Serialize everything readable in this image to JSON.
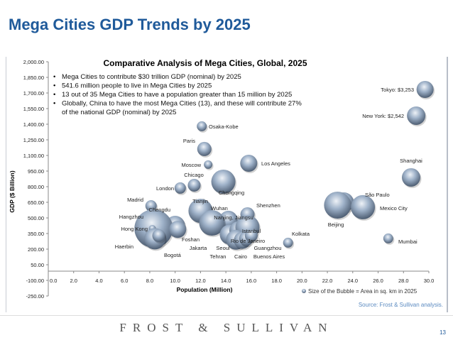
{
  "slide": {
    "title": "Mega Cities GDP Trends by 2025",
    "source": "Source: Frost & Sullivan analysis.",
    "footer": "FROST & SULLIVAN",
    "page": "13"
  },
  "chart_data": {
    "type": "bubble",
    "title": "Comparative Analysis  of Mega Cities, Global, 2025",
    "xlabel": "Population (Million)",
    "ylabel": "GDP ($ Billion)",
    "xlim": [
      0,
      30
    ],
    "ylim": [
      -250,
      2000
    ],
    "x_ticks": [
      "0.0",
      "2.0",
      "4.0",
      "6.0",
      "8.0",
      "10.0",
      "12.0",
      "14.0",
      "16.0",
      "18.0",
      "20.0",
      "22.0",
      "24.0",
      "26.0",
      "28.0",
      "30.0"
    ],
    "y_ticks": [
      "2,000.00",
      "1,850.00",
      "1,700.00",
      "1,550.00",
      "1,400.00",
      "1,250.00",
      "1,100.00",
      "950.00",
      "800.00",
      "650.00",
      "500.00",
      "350.00",
      "200.00",
      "50.00",
      "-100.00",
      "-250.00"
    ],
    "legend": "Size of the Bubble = Area in sq. km in 2025",
    "bubble_color": "#8fa3bd",
    "notes": [
      "Mega Cities to contribute $30 trillion GDP (nominal) by 2025",
      "541.6 million people to live in Mega Cities by 2025",
      "13 out of 35 Mega Cities to have a population greater than 15 million by 2025",
      "Globally, China to have the most Mega Cities (13), and these will contribute 27%",
      "of the national GDP (nominal) by 2025"
    ],
    "points": [
      {
        "name": "Tokyo: $3,253",
        "x": 29.7,
        "y": 1734,
        "size": 12
      },
      {
        "name": "New York: $2,542",
        "x": 29.0,
        "y": 1482,
        "size": 13
      },
      {
        "name": "Osaka-Kobe",
        "x": 12.1,
        "y": 1380,
        "size": 7
      },
      {
        "name": "Paris",
        "x": 12.3,
        "y": 1162,
        "size": 10
      },
      {
        "name": "Moscow",
        "x": 12.6,
        "y": 1012,
        "size": 6
      },
      {
        "name": "Los Angeles",
        "x": 15.8,
        "y": 1025,
        "size": 12
      },
      {
        "name": "Chicago",
        "x": 11.5,
        "y": 814,
        "size": 9
      },
      {
        "name": "London",
        "x": 10.4,
        "y": 787,
        "size": 8
      },
      {
        "name": "Chongqing",
        "x": 13.8,
        "y": 848,
        "size": 17
      },
      {
        "name": "Shanghai",
        "x": 28.6,
        "y": 889,
        "size": 13
      },
      {
        "name": "São Paulo",
        "x": 23.3,
        "y": 650,
        "size": 14
      },
      {
        "name": "Beijing",
        "x": 22.8,
        "y": 623,
        "size": 19
      },
      {
        "name": "Mexico City",
        "x": 24.8,
        "y": 603,
        "size": 17
      },
      {
        "name": "Mumbai",
        "x": 26.8,
        "y": 303,
        "size": 7
      },
      {
        "name": "Madrid",
        "x": 8.1,
        "y": 616,
        "size": 8
      },
      {
        "name": "Tianjin",
        "x": 12.0,
        "y": 568,
        "size": 17
      },
      {
        "name": "Chengdu",
        "x": 10.0,
        "y": 425,
        "size": 14
      },
      {
        "name": "Hangzhou",
        "x": 8.3,
        "y": 398,
        "size": 27
      },
      {
        "name": "Hong Kong",
        "x": 8.2,
        "y": 398,
        "size": 5
      },
      {
        "name": "Haerbin",
        "x": 8.4,
        "y": 300,
        "size": 15
      },
      {
        "name": "Bogotá",
        "x": 8.7,
        "y": 330,
        "size": 9
      },
      {
        "name": "Foshan",
        "x": 10.2,
        "y": 390,
        "size": 12
      },
      {
        "name": "Wuhan",
        "x": 14.2,
        "y": 480,
        "size": 13
      },
      {
        "name": "Nanjing, Jiangsu",
        "x": 15.3,
        "y": 430,
        "size": 9
      },
      {
        "name": "Shenzhen",
        "x": 15.7,
        "y": 534,
        "size": 10
      },
      {
        "name": "Jakarta",
        "x": 12.9,
        "y": 452,
        "size": 18
      },
      {
        "name": "Seoul",
        "x": 14.3,
        "y": 340,
        "size": 14
      },
      {
        "name": "Rio de Janeiro",
        "x": 15.0,
        "y": 380,
        "size": 13
      },
      {
        "name": "Istanbul",
        "x": 15.7,
        "y": 410,
        "size": 17
      },
      {
        "name": "Tehran",
        "x": 14.8,
        "y": 290,
        "size": 14
      },
      {
        "name": "Cairo",
        "x": 15.3,
        "y": 285,
        "size": 12
      },
      {
        "name": "Buenos Aires",
        "x": 15.6,
        "y": 300,
        "size": 10
      },
      {
        "name": "Guangzhou",
        "x": 16.0,
        "y": 330,
        "size": 9
      },
      {
        "name": "Kolkata",
        "x": 18.9,
        "y": 262,
        "size": 7
      }
    ]
  }
}
